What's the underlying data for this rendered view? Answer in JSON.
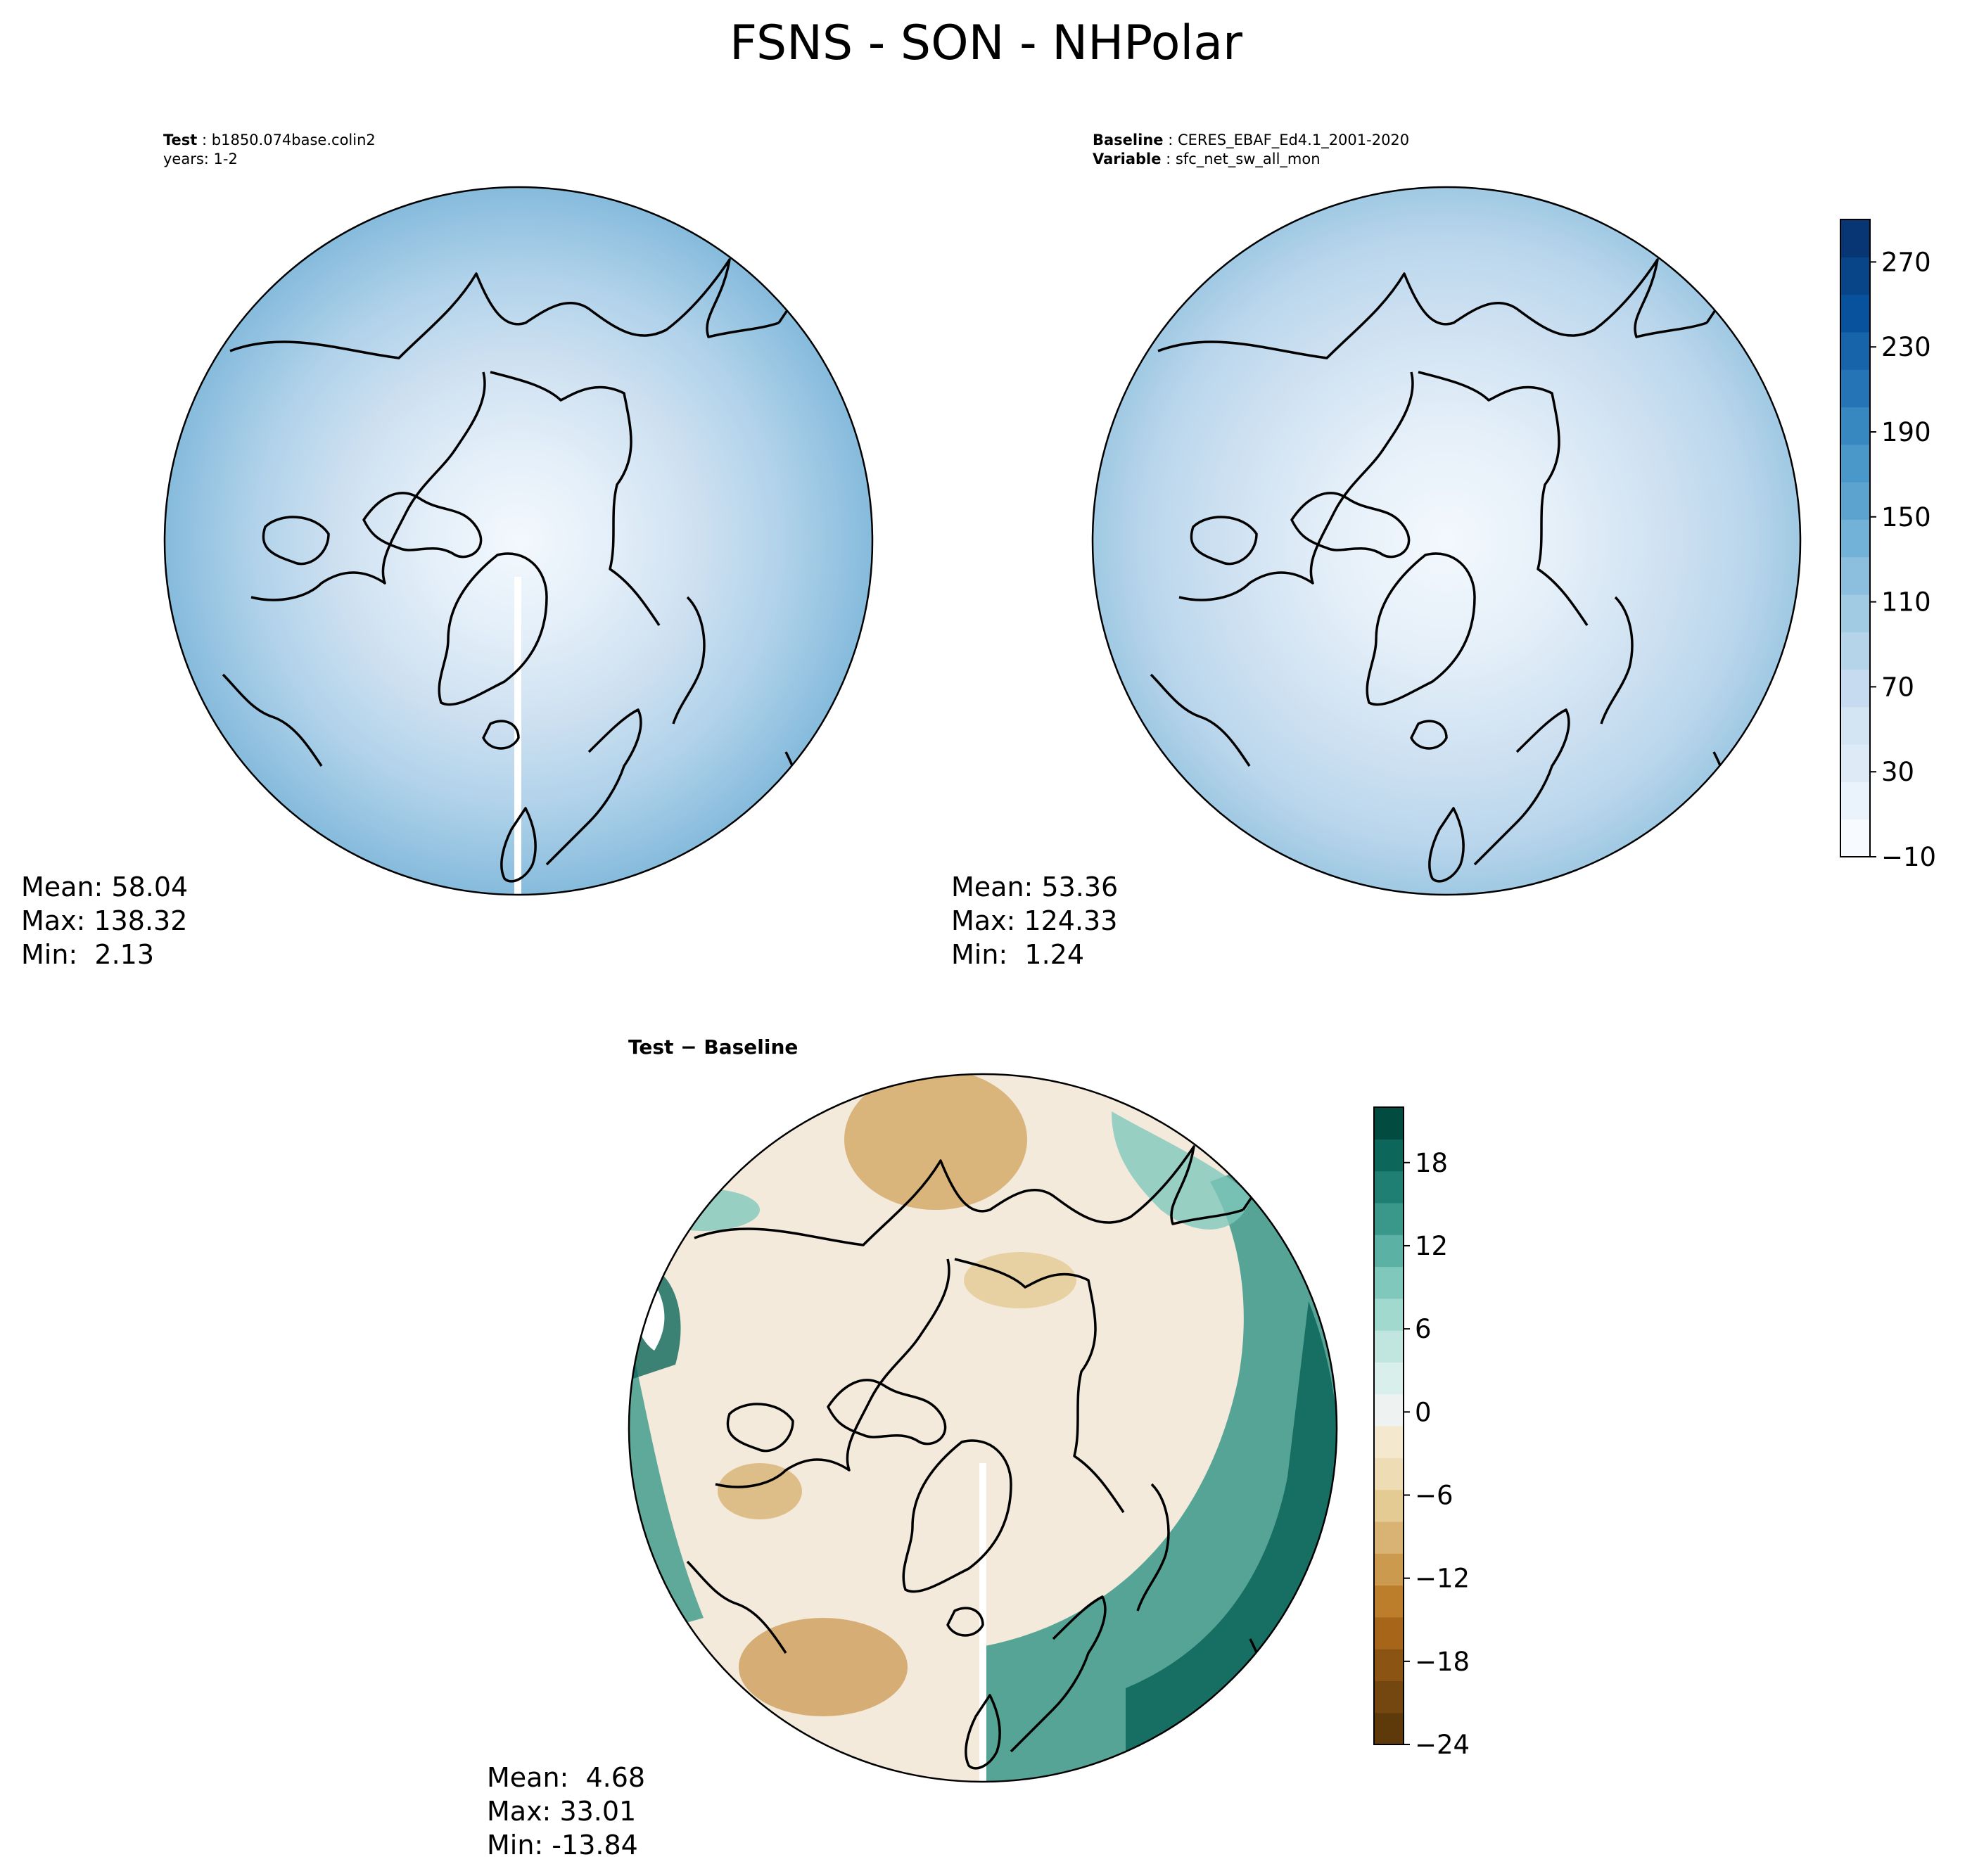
{
  "title": "FSNS - SON - NHPolar",
  "panels": {
    "test": {
      "header_key": "Test",
      "header_value": "b1850.074base.colin2",
      "line2": "years: 1-2",
      "stats": {
        "mean": "Mean: 58.04",
        "max": "Max: 138.32",
        "min": "Min:  2.13"
      }
    },
    "baseline": {
      "header_key": "Baseline",
      "header_value": "CERES_EBAF_Ed4.1_2001-2020",
      "line2_key": "Variable",
      "line2_value": "sfc_net_sw_all_mon",
      "stats": {
        "mean": "Mean: 53.36",
        "max": "Max: 124.33",
        "min": "Min:  1.24"
      }
    },
    "diff": {
      "label": "Test − Baseline",
      "stats": {
        "mean": "Mean:  4.68",
        "max": "Max: 33.01",
        "min": "Min: -13.84"
      }
    }
  },
  "colorbars": {
    "main": {
      "ticks": [
        "−10",
        "30",
        "70",
        "110",
        "150",
        "190",
        "230",
        "270"
      ],
      "tick_values": [
        -10,
        30,
        70,
        110,
        150,
        190,
        230,
        270
      ],
      "range": [
        -10,
        290
      ],
      "colors": [
        "#f7fbff",
        "#eaf3fb",
        "#deebf7",
        "#d3e4f3",
        "#c6dbef",
        "#b5d4e9",
        "#a0cbe2",
        "#8bbfdd",
        "#73b2d8",
        "#5da3cf",
        "#4a98c9",
        "#3787c0",
        "#2474b6",
        "#1764ab",
        "#08519c",
        "#084488",
        "#083573"
      ]
    },
    "diff": {
      "ticks": [
        "−24",
        "−18",
        "−12",
        "−6",
        "0",
        "6",
        "12",
        "18"
      ],
      "tick_values": [
        -24,
        -18,
        -12,
        -6,
        0,
        6,
        12,
        18
      ],
      "range": [
        -24,
        22
      ],
      "colors": [
        "#5e3a0a",
        "#744610",
        "#8c5413",
        "#a66519",
        "#bd7e2c",
        "#cb9a4f",
        "#d8b373",
        "#e4cb94",
        "#eedcb4",
        "#f4e8cf",
        "#eef3f1",
        "#d9efeb",
        "#c0e6df",
        "#a1d9cf",
        "#7fc8bb",
        "#5bb1a3",
        "#3a988a",
        "#1f7f72",
        "#0c665a",
        "#024b40"
      ]
    }
  },
  "colors": {
    "land_outline": "#000000",
    "polar_low": "#eff5fb",
    "polar_high": "#7fb5da"
  }
}
